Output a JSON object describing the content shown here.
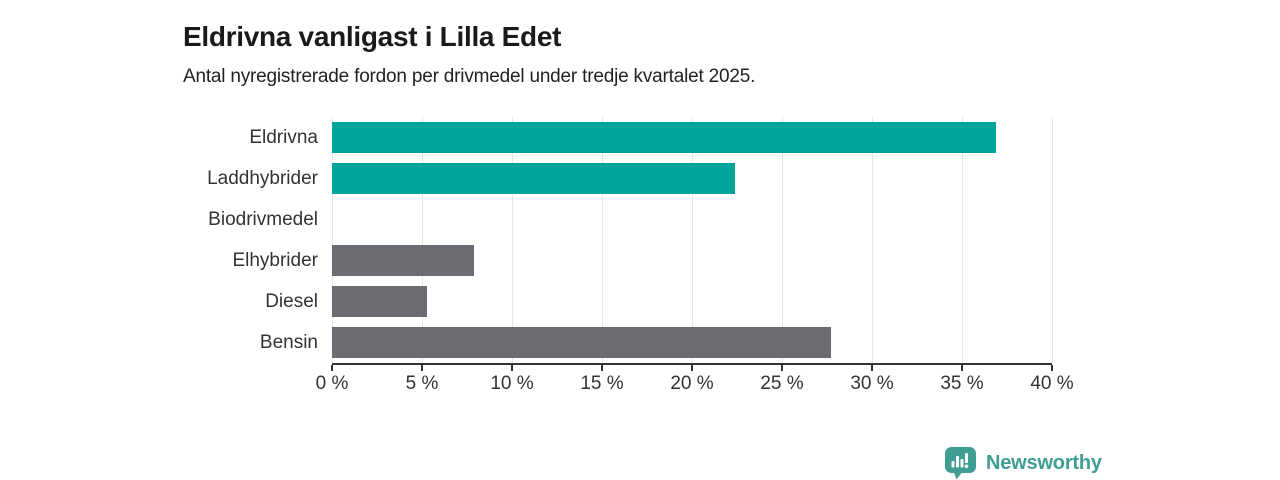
{
  "header": {
    "title": "Eldrivna vanligast i Lilla Edet",
    "subtitle": "Antal nyregistrerade fordon per drivmedel under tredje kvartalet 2025."
  },
  "chart_data": {
    "type": "bar",
    "orientation": "horizontal",
    "title": "Eldrivna vanligast i Lilla Edet",
    "subtitle": "Antal nyregistrerade fordon per drivmedel under tredje kvartalet 2025.",
    "categories": [
      "Eldrivna",
      "Laddhybrider",
      "Biodrivmedel",
      "Elhybrider",
      "Diesel",
      "Bensin"
    ],
    "values": [
      36.9,
      22.4,
      0,
      7.9,
      5.3,
      27.7
    ],
    "unit": "%",
    "bar_colors": [
      "#00a49a",
      "#00a49a",
      "#6c6b71",
      "#6c6b71",
      "#6c6b71",
      "#6c6b71"
    ],
    "xlabel": "",
    "ylabel": "",
    "xlim": [
      0,
      40
    ],
    "x_ticks": [
      0,
      5,
      10,
      15,
      20,
      25,
      30,
      35,
      40
    ],
    "x_tick_labels": [
      "0 %",
      "5 %",
      "10 %",
      "15 %",
      "20 %",
      "25 %",
      "30 %",
      "35 %",
      "40 %"
    ],
    "grid": "vertical-only",
    "legend": "none"
  },
  "colors": {
    "accent_teal": "#00a49a",
    "bar_gray": "#6c6b71",
    "axis": "#333333",
    "gridline": "#e9e5e5",
    "title_text": "#1a1a1a",
    "logo_teal": "#3f9d94"
  },
  "branding": {
    "logo_text": "Newsworthy",
    "logo_icon": "bar-chart-speech-bubble"
  }
}
